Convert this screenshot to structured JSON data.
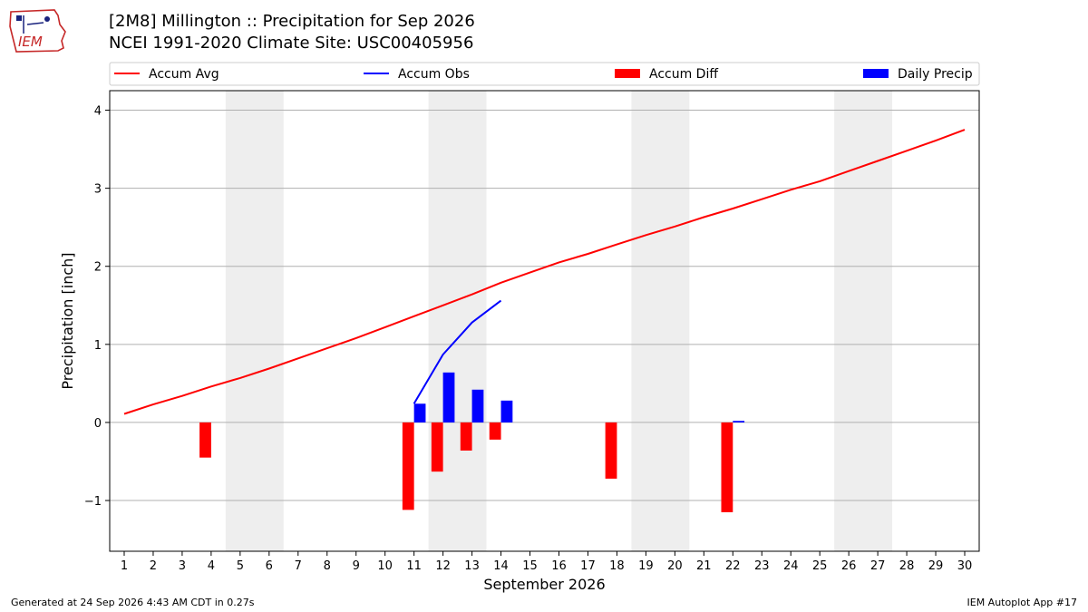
{
  "header": {
    "title_line1": "[2M8] Millington :: Precipitation for Sep 2026",
    "title_line2": "NCEI 1991-2020 Climate Site: USC00405956",
    "logo_text": "IEM"
  },
  "footer": {
    "generated": "Generated at 24 Sep 2026 4:43 AM CDT in 0.27s",
    "app": "IEM Autoplot App #17"
  },
  "colors": {
    "avg": "#ff0000",
    "obs": "#0000ff",
    "diff": "#ff0000",
    "daily": "#0000ff",
    "weekend_shade": "#eeeeee",
    "grid": "#b0b0b0"
  },
  "chart_data": {
    "type": "bar",
    "xlabel": "September 2026",
    "ylabel": "Precipitation [inch]",
    "ylim": [
      -1.65,
      4.25
    ],
    "yticks": [
      -1,
      0,
      1,
      2,
      3,
      4
    ],
    "ytick_labels": [
      "−1",
      "0",
      "1",
      "2",
      "3",
      "4"
    ],
    "xlim": [
      0.5,
      30.5
    ],
    "days": [
      1,
      2,
      3,
      4,
      5,
      6,
      7,
      8,
      9,
      10,
      11,
      12,
      13,
      14,
      15,
      16,
      17,
      18,
      19,
      20,
      21,
      22,
      23,
      24,
      25,
      26,
      27,
      28,
      29,
      30
    ],
    "grid": "horizontal",
    "legend_position": "top",
    "legend": [
      "Accum Avg",
      "Accum Obs",
      "Accum Diff",
      "Daily Precip"
    ],
    "shaded_days": [
      [
        5,
        6
      ],
      [
        12,
        13
      ],
      [
        19,
        20
      ],
      [
        26,
        27
      ]
    ],
    "series": [
      {
        "name": "Accum Avg",
        "kind": "line",
        "x": [
          1,
          2,
          3,
          4,
          5,
          6,
          7,
          8,
          9,
          10,
          11,
          12,
          13,
          14,
          15,
          16,
          17,
          18,
          19,
          20,
          21,
          22,
          23,
          24,
          25,
          26,
          27,
          28,
          29,
          30
        ],
        "values": [
          0.11,
          0.23,
          0.34,
          0.46,
          0.57,
          0.69,
          0.82,
          0.95,
          1.08,
          1.22,
          1.36,
          1.5,
          1.64,
          1.79,
          1.92,
          2.05,
          2.16,
          2.28,
          2.4,
          2.51,
          2.63,
          2.74,
          2.86,
          2.98,
          3.09,
          3.22,
          3.35,
          3.48,
          3.61,
          3.75
        ]
      },
      {
        "name": "Accum Obs",
        "kind": "line",
        "x": [
          11,
          12,
          13,
          14
        ],
        "values": [
          0.24,
          0.87,
          1.28,
          1.56
        ]
      },
      {
        "name": "Accum Diff",
        "kind": "bar",
        "x": [
          4,
          11,
          12,
          13,
          14,
          18,
          22
        ],
        "values": [
          -0.45,
          -1.12,
          -0.63,
          -0.36,
          -0.22,
          -0.72,
          -1.15
        ]
      },
      {
        "name": "Daily Precip",
        "kind": "bar",
        "x": [
          11,
          12,
          13,
          14,
          22
        ],
        "values": [
          0.24,
          0.64,
          0.42,
          0.28,
          0.02
        ]
      }
    ]
  }
}
